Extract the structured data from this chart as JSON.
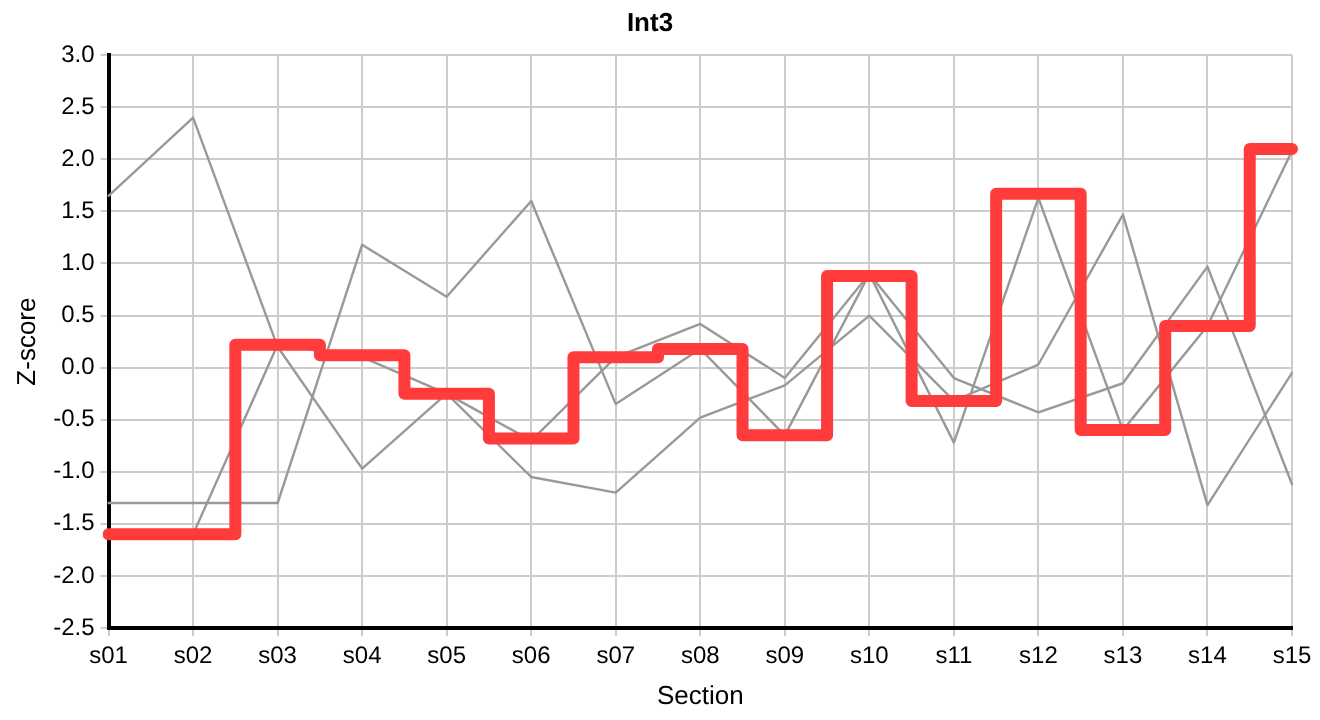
{
  "chart_data": {
    "type": "line",
    "title": "Int3",
    "xlabel": "Section",
    "ylabel": "Z-score",
    "categories": [
      "s01",
      "s02",
      "s03",
      "s04",
      "s05",
      "s06",
      "s07",
      "s08",
      "s09",
      "s10",
      "s11",
      "s12",
      "s13",
      "s14",
      "s15"
    ],
    "ylim": [
      -2.5,
      3.0
    ],
    "yticks": [
      {
        "value": -2.5,
        "label": "-2.5"
      },
      {
        "value": -2,
        "label": "-2.0"
      },
      {
        "value": -1.5,
        "label": "-1.5"
      },
      {
        "value": -1,
        "label": "-1.0"
      },
      {
        "value": -0.5,
        "label": "-0.5"
      },
      {
        "value": 0,
        "label": "0.0"
      },
      {
        "value": 0.5,
        "label": "0.5"
      },
      {
        "value": 1,
        "label": "1.0"
      },
      {
        "value": 1.5,
        "label": "1.5"
      },
      {
        "value": 2,
        "label": "2.0"
      },
      {
        "value": 2.5,
        "label": "2.5"
      },
      {
        "value": 3,
        "label": "3.0"
      }
    ],
    "grid": true,
    "legend": false,
    "marker": "none",
    "series": [
      {
        "type": "line",
        "color": "#999999",
        "values": [
          1.65,
          2.4,
          0.2,
          -0.97,
          -0.25,
          -1.05,
          -1.2,
          -0.48,
          -0.17,
          0.5,
          -0.32,
          0.03,
          1.47,
          -1.32,
          -0.05
        ]
      },
      {
        "type": "line",
        "color": "#999999",
        "values": [
          -1.3,
          -1.3,
          -1.3,
          1.18,
          0.68,
          1.6,
          -0.35,
          0.18,
          -0.65,
          0.9,
          -0.72,
          1.63,
          -0.6,
          0.4,
          2.08
        ]
      },
      {
        "type": "line",
        "color": "#999999",
        "values": [
          null,
          -1.6,
          0.22,
          0.1,
          -0.25,
          -0.7,
          0.1,
          0.42,
          -0.1,
          0.9,
          -0.1,
          -0.43,
          -0.15,
          0.97,
          -1.12
        ]
      },
      {
        "type": "step",
        "color": "#ff3b3b",
        "values": [
          -1.6,
          -1.6,
          0.22,
          0.12,
          -0.25,
          -0.68,
          0.1,
          0.18,
          -0.65,
          0.88,
          -0.32,
          1.67,
          -0.6,
          0.4,
          2.1
        ]
      }
    ]
  }
}
